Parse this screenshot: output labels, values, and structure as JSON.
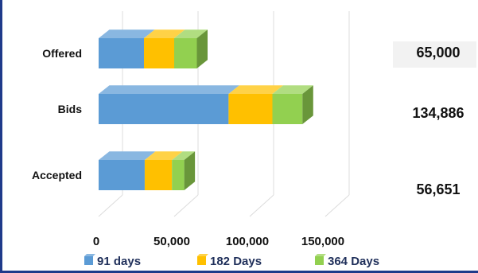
{
  "colors": {
    "series_fill": [
      "#5b9bd5",
      "#ffc000",
      "#92d050"
    ],
    "frame": "#1f3a8a",
    "total_box": "#f2f2f2"
  },
  "chart_data": {
    "type": "bar",
    "orientation": "horizontal",
    "style": "3d-stacked",
    "categories": [
      "Offered",
      "Bids",
      "Accepted"
    ],
    "series": [
      {
        "name": "91 days",
        "values": [
          30000,
          86000,
          30500
        ]
      },
      {
        "name": "182 Days",
        "values": [
          20000,
          29000,
          18000
        ]
      },
      {
        "name": "364 Days",
        "values": [
          15000,
          19886,
          8151
        ]
      }
    ],
    "totals": [
      "65,000",
      "134,886",
      "56,651"
    ],
    "x_ticks": [
      0,
      50000,
      100000,
      150000
    ],
    "x_tick_labels": [
      "0",
      "50,000",
      "100,000",
      "150,000"
    ],
    "xlim": [
      0,
      160000
    ],
    "grid": true,
    "legend_position": "bottom"
  }
}
